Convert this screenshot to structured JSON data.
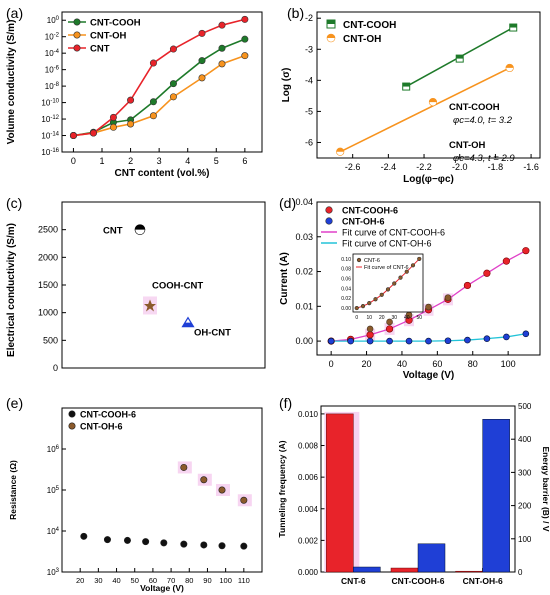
{
  "panels": {
    "a": {
      "label": "(a)"
    },
    "b": {
      "label": "(b)"
    },
    "c": {
      "label": "(c)"
    },
    "d": {
      "label": "(d)"
    },
    "e": {
      "label": "(e)"
    },
    "f": {
      "label": "(f)"
    }
  },
  "colors": {
    "red": "#e8232a",
    "green": "#1e7a2a",
    "orange": "#f7931e",
    "blue": "#1f3fd6",
    "brown": "#8b5a2b",
    "black": "#111111",
    "magenta": "#e040c8",
    "cyan": "#22c3d8",
    "pink_band": "#f4c7ec"
  },
  "chart_data": [
    {
      "id": "a",
      "type": "line",
      "xlabel": "CNT content (vol.%)",
      "ylabel": "Volume conductivity (S/m)",
      "xlim": [
        -0.4,
        6.6
      ],
      "ylim_log10": [
        -16,
        1
      ],
      "y_scale": "log",
      "x_ticks": [
        0,
        1,
        2,
        3,
        4,
        5,
        6
      ],
      "y_tick_labels": [
        "10^-16",
        "10^-14",
        "10^-12",
        "10^-10",
        "10^-8",
        "10^-6",
        "10^-4",
        "10^-2",
        "10^0"
      ],
      "legend_placement": "top-left",
      "series": [
        {
          "name": "CNT-COOH",
          "color": "#1e7a2a",
          "x": [
            0,
            0.7,
            1.4,
            2.0,
            2.8,
            3.5,
            4.5,
            5.2,
            6.0
          ],
          "y_log10": [
            -14.0,
            -13.6,
            -12.4,
            -12.1,
            -9.9,
            -7.7,
            -4.9,
            -3.4,
            -2.3
          ]
        },
        {
          "name": "CNT-OH",
          "color": "#f7931e",
          "x": [
            0,
            0.7,
            1.4,
            2.0,
            2.8,
            3.5,
            4.5,
            5.2,
            6.0
          ],
          "y_log10": [
            -14.0,
            -13.7,
            -13.0,
            -12.6,
            -11.6,
            -9.3,
            -7.0,
            -5.3,
            -4.3
          ]
        },
        {
          "name": "CNT",
          "color": "#e8232a",
          "x": [
            0,
            0.7,
            1.4,
            2.0,
            2.8,
            3.5,
            4.5,
            5.2,
            6.0
          ],
          "y_log10": [
            -14.0,
            -13.7,
            -11.8,
            -9.7,
            -5.2,
            -3.5,
            -1.6,
            -0.6,
            0.1
          ]
        }
      ]
    },
    {
      "id": "b",
      "type": "scatter",
      "xlabel": "Log(φ−φc)",
      "ylabel": "Log (σ)",
      "xlim": [
        -2.8,
        -1.55
      ],
      "ylim": [
        -6.5,
        -1.8
      ],
      "x_ticks": [
        -2.6,
        -2.4,
        -2.2,
        -2.0,
        -1.8,
        -1.6
      ],
      "y_ticks": [
        -6,
        -5,
        -4,
        -3,
        -2
      ],
      "legend_placement": "top-left",
      "series": [
        {
          "name": "CNT-COOH",
          "color": "#1e7a2a",
          "marker": "square",
          "x": [
            -2.3,
            -2.0,
            -1.7
          ],
          "y": [
            -4.2,
            -3.3,
            -2.3
          ],
          "fit": [
            [
              -2.3,
              -4.2
            ],
            [
              -1.7,
              -2.3
            ]
          ]
        },
        {
          "name": "CNT-OH",
          "color": "#f7931e",
          "marker": "circle",
          "x": [
            -2.67,
            -2.15,
            -1.72
          ],
          "y": [
            -6.3,
            -4.7,
            -3.6
          ],
          "fit": [
            [
              -2.67,
              -6.3
            ],
            [
              -1.72,
              -3.6
            ]
          ]
        }
      ],
      "annotations": [
        {
          "title": "CNT-COOH",
          "params": "φc=4.0, t= 3.2"
        },
        {
          "title": "CNT-OH",
          "params": "φc=4.3, t = 2.9"
        }
      ]
    },
    {
      "id": "c",
      "type": "scatter",
      "ylabel": "Electrical conductivity (S/m)",
      "ylim": [
        0,
        3000
      ],
      "y_ticks": [
        0,
        500,
        1000,
        1500,
        2000,
        2500
      ],
      "points": [
        {
          "label": "CNT",
          "y": 2500,
          "color": "#111111",
          "marker": "half-circle"
        },
        {
          "label": "COOH-CNT",
          "y": 1130,
          "color": "#8b5a2b",
          "marker": "star"
        },
        {
          "label": "OH-CNT",
          "y": 820,
          "color": "#1f3fd6",
          "marker": "triangle"
        }
      ]
    },
    {
      "id": "d",
      "type": "scatter",
      "xlabel": "Voltage (V)",
      "ylabel": "Current (A)",
      "xlim": [
        -8,
        118
      ],
      "ylim": [
        -0.004,
        0.04
      ],
      "x_ticks": [
        0,
        20,
        40,
        60,
        80,
        100
      ],
      "y_ticks": [
        "0.00",
        "0.01",
        "0.02",
        "0.03",
        "0.04"
      ],
      "legend": [
        "CNT-COOH-6",
        "CNT-OH-6",
        "Fit curve of CNT-COOH-6",
        "Fit curve of CNT-OH-6"
      ],
      "series": [
        {
          "name": "CNT-COOH-6",
          "color": "#e8232a",
          "x": [
            0,
            11,
            22,
            33,
            44,
            55,
            66,
            77,
            88,
            99,
            110
          ],
          "y": [
            0.0,
            0.0005,
            0.0018,
            0.0035,
            0.006,
            0.009,
            0.012,
            0.016,
            0.0195,
            0.023,
            0.026
          ]
        },
        {
          "name": "CNT-OH-6",
          "color": "#1f3fd6",
          "x": [
            0,
            11,
            22,
            33,
            44,
            55,
            66,
            77,
            88,
            99,
            110
          ],
          "y": [
            0,
            0,
            0,
            0,
            0,
            0,
            0.0001,
            0.0003,
            0.0007,
            0.0012,
            0.0021
          ]
        },
        {
          "name": "CNT-6 (points near CNT-COOH-6)",
          "color": "#8b5a2b",
          "x": [
            22,
            33,
            44,
            55,
            66
          ],
          "y": [
            0.0035,
            0.0055,
            0.0075,
            0.0098,
            0.0125
          ]
        }
      ],
      "inset": {
        "legend": [
          "CNT-6",
          "Fit curve of CNT-6"
        ],
        "x_ticks": [
          0,
          10,
          20,
          30,
          40,
          50
        ],
        "y_ticks": [
          "0.00",
          "0.02",
          "0.04",
          "0.06",
          "0.08",
          "0.10"
        ],
        "x": [
          0,
          5,
          10,
          15,
          20,
          25,
          30,
          35,
          40,
          45,
          50
        ],
        "y": [
          0.0,
          0.004,
          0.01,
          0.018,
          0.027,
          0.038,
          0.05,
          0.062,
          0.074,
          0.087,
          0.1
        ]
      }
    },
    {
      "id": "e",
      "type": "scatter",
      "xlabel": "Voltage (V)",
      "ylabel": "Resistance (Ω)",
      "y_scale": "log",
      "xlim": [
        10,
        120
      ],
      "ylim_log10": [
        3,
        7
      ],
      "x_ticks": [
        20,
        30,
        40,
        50,
        60,
        70,
        80,
        90,
        100,
        110
      ],
      "y_tick_labels": [
        "10^3",
        "10^4",
        "10^5",
        "10^6"
      ],
      "series": [
        {
          "name": "CNT-COOH-6",
          "color": "#111111",
          "x": [
            22,
            35,
            46,
            56,
            66,
            77,
            88,
            98,
            110
          ],
          "y_log10": [
            3.87,
            3.79,
            3.77,
            3.74,
            3.71,
            3.68,
            3.66,
            3.64,
            3.63
          ]
        },
        {
          "name": "CNT-OH-6",
          "color": "#8b5a2b",
          "x": [
            77,
            88,
            98,
            110
          ],
          "y_log10": [
            5.55,
            5.25,
            5.0,
            4.75
          ]
        }
      ]
    },
    {
      "id": "f",
      "type": "bar",
      "ylabel_left": "Tunneling frequency (A)",
      "ylabel_right": "Energy barrier (B) / V",
      "categories": [
        "CNT-6",
        "CNT-COOH-6",
        "CNT-OH-6"
      ],
      "ylim_left": [
        0,
        0.0105
      ],
      "ylim_right": [
        0,
        500
      ],
      "y_ticks_left": [
        "0.000",
        "0.002",
        "0.004",
        "0.006",
        "0.008",
        "0.010"
      ],
      "y_ticks_right": [
        0,
        100,
        200,
        300,
        400,
        500
      ],
      "series": [
        {
          "name": "Tunneling frequency (A)",
          "axis": "left",
          "color": "#e8232a",
          "values": [
            0.01,
            0.00025,
            5e-05
          ]
        },
        {
          "name": "Energy barrier (B)",
          "axis": "right",
          "color": "#1f3fd6",
          "values": [
            15,
            85,
            460
          ]
        }
      ]
    }
  ]
}
